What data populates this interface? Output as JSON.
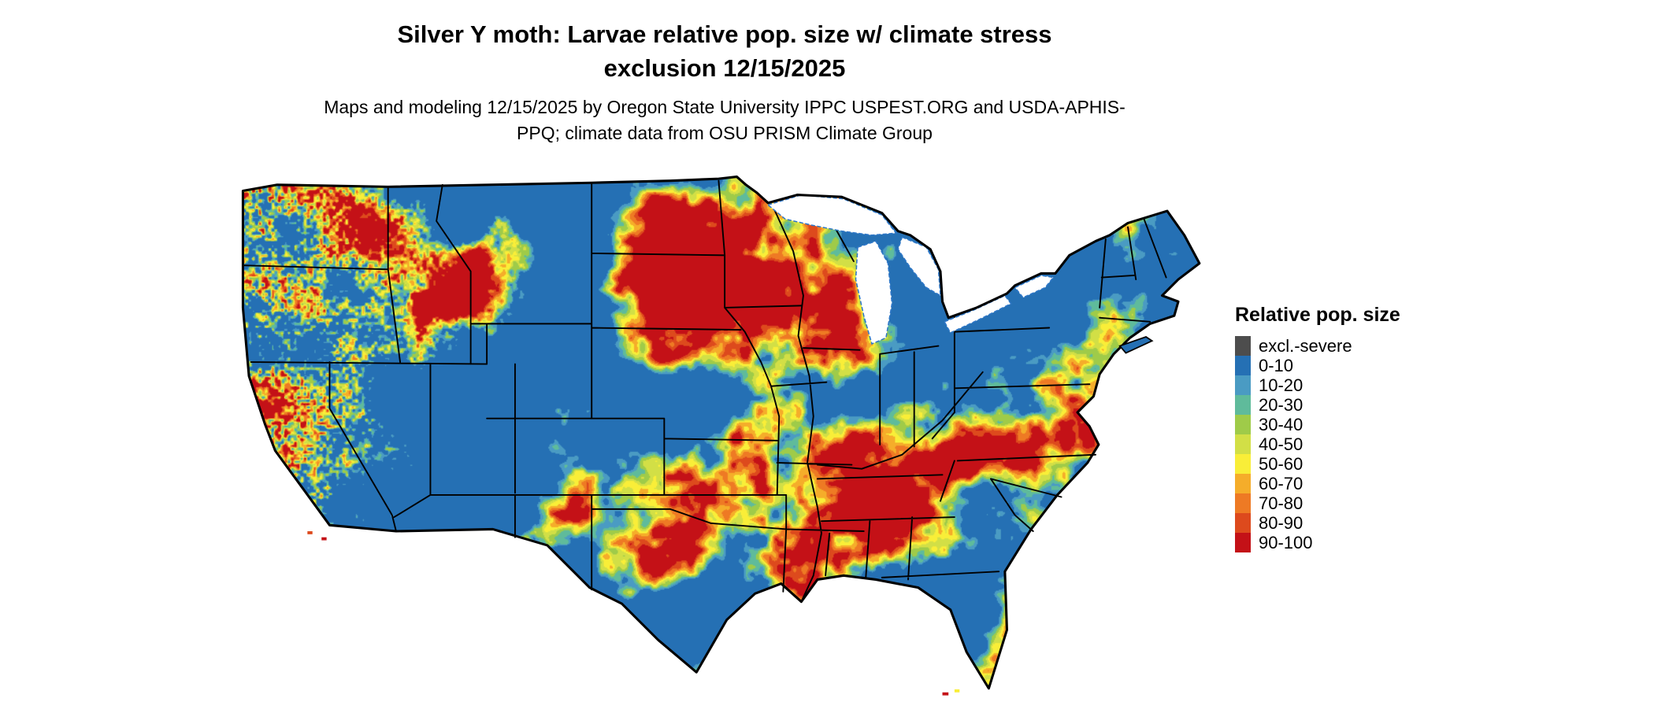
{
  "header": {
    "title": "Silver Y moth: Larvae relative pop. size w/ climate stress exclusion 12/15/2025",
    "subtitle": "Maps and modeling 12/15/2025 by Oregon State University IPPC USPEST.ORG and USDA-APHIS-PPQ; climate data from OSU PRISM Climate Group"
  },
  "legend": {
    "title": "Relative pop. size",
    "items": [
      {
        "label": "excl.-severe",
        "color": "#4d4d4d"
      },
      {
        "label": "0-10",
        "color": "#2570b4"
      },
      {
        "label": "10-20",
        "color": "#4a9bc3"
      },
      {
        "label": "20-30",
        "color": "#5fbb9b"
      },
      {
        "label": "30-40",
        "color": "#9fcb49"
      },
      {
        "label": "40-50",
        "color": "#d2df46"
      },
      {
        "label": "50-60",
        "color": "#f9ee38"
      },
      {
        "label": "60-70",
        "color": "#f5ad2a"
      },
      {
        "label": "70-80",
        "color": "#ee7a24"
      },
      {
        "label": "80-90",
        "color": "#dd4a1d"
      },
      {
        "label": "90-100",
        "color": "#c41117"
      }
    ]
  },
  "map": {
    "region": "Contiguous United States raster of larvae relative population size",
    "outline_color": "#000000",
    "state_border_color": "#000000",
    "lake_fill": "#ffffff",
    "lake_edge": "#2e77c8",
    "background": "#ffffff"
  }
}
